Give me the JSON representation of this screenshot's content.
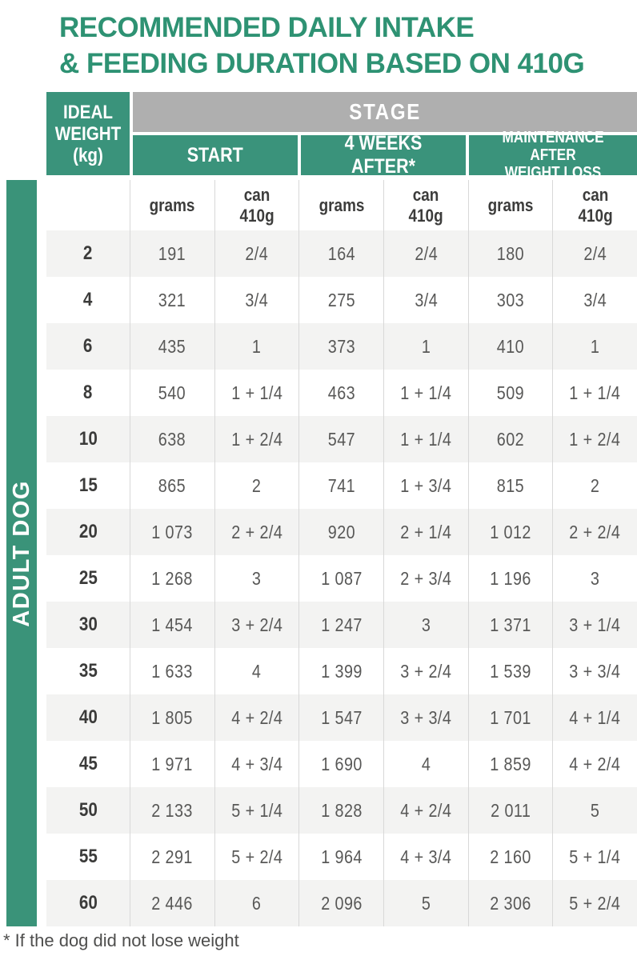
{
  "title": {
    "line1": "RECOMMENDED DAILY INTAKE",
    "line2": "& FEEDING DURATION BASED ON 410G"
  },
  "sidebar": {
    "label": "ADULT DOG"
  },
  "table": {
    "corner_header": "IDEAL\nWEIGHT\n(kg)",
    "stage_label": "STAGE",
    "stage_columns": [
      "START",
      "4 WEEKS AFTER*",
      "MAINTENANCE AFTER\nWEIGHT LOSS"
    ],
    "unit_labels": [
      "grams",
      "can\n410g",
      "grams",
      "can\n410g",
      "grams",
      "can\n410g"
    ],
    "rows": [
      {
        "weight": "2",
        "values": [
          "191",
          "2/4",
          "164",
          "2/4",
          "180",
          "2/4"
        ]
      },
      {
        "weight": "4",
        "values": [
          "321",
          "3/4",
          "275",
          "3/4",
          "303",
          "3/4"
        ]
      },
      {
        "weight": "6",
        "values": [
          "435",
          "1",
          "373",
          "1",
          "410",
          "1"
        ]
      },
      {
        "weight": "8",
        "values": [
          "540",
          "1 + 1/4",
          "463",
          "1 + 1/4",
          "509",
          "1 + 1/4"
        ]
      },
      {
        "weight": "10",
        "values": [
          "638",
          "1 + 2/4",
          "547",
          "1 + 1/4",
          "602",
          "1 + 2/4"
        ]
      },
      {
        "weight": "15",
        "values": [
          "865",
          "2",
          "741",
          "1 + 3/4",
          "815",
          "2"
        ]
      },
      {
        "weight": "20",
        "values": [
          "1 073",
          "2 + 2/4",
          "920",
          "2 + 1/4",
          "1 012",
          "2 + 2/4"
        ]
      },
      {
        "weight": "25",
        "values": [
          "1 268",
          "3",
          "1 087",
          "2 + 3/4",
          "1 196",
          "3"
        ]
      },
      {
        "weight": "30",
        "values": [
          "1 454",
          "3 + 2/4",
          "1 247",
          "3",
          "1 371",
          "3 + 1/4"
        ]
      },
      {
        "weight": "35",
        "values": [
          "1 633",
          "4",
          "1 399",
          "3 + 2/4",
          "1 539",
          "3 + 3/4"
        ]
      },
      {
        "weight": "40",
        "values": [
          "1 805",
          "4 + 2/4",
          "1 547",
          "3 + 3/4",
          "1 701",
          "4 + 1/4"
        ]
      },
      {
        "weight": "45",
        "values": [
          "1 971",
          "4 + 3/4",
          "1 690",
          "4",
          "1 859",
          "4 + 2/4"
        ]
      },
      {
        "weight": "50",
        "values": [
          "2 133",
          "5 + 1/4",
          "1 828",
          "4 + 2/4",
          "2 011",
          "5"
        ]
      },
      {
        "weight": "55",
        "values": [
          "2 291",
          "5 + 2/4",
          "1 964",
          "4 + 3/4",
          "2 160",
          "5 + 1/4"
        ]
      },
      {
        "weight": "60",
        "values": [
          "2 446",
          "6",
          "2 096",
          "5",
          "2 306",
          "5 + 2/4"
        ]
      }
    ]
  },
  "footnote": "* If the dog did not lose weight",
  "colors": {
    "header_green": "#3A937B",
    "sidebar_green": "#3A9379",
    "title_green": "#2E9273",
    "stage_gray": "#AFAFAF",
    "row_alt_gray": "#F3F3F2",
    "grid_line": "#D8D8D8",
    "data_text": "#585857",
    "dark_text": "#3C3C3B"
  }
}
